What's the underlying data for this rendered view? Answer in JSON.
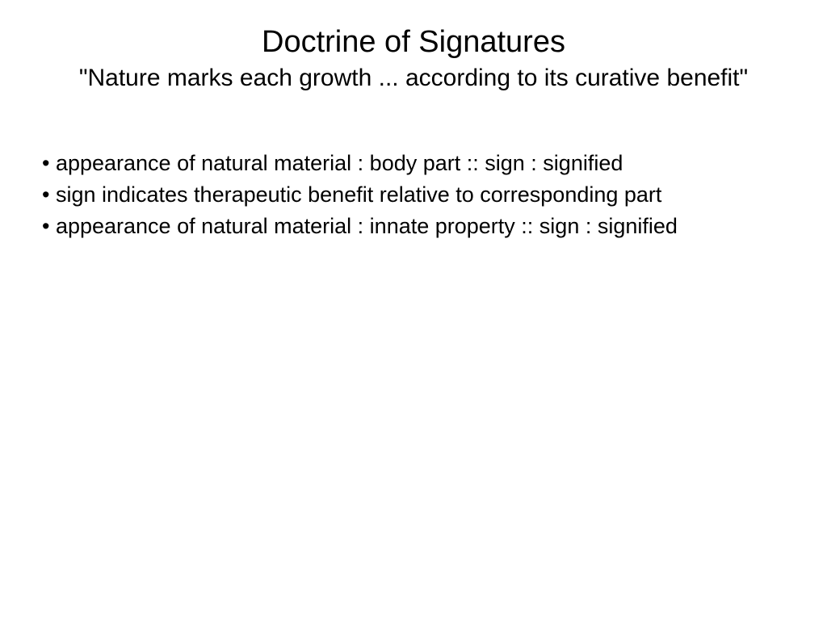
{
  "slide": {
    "title": "Doctrine of Signatures",
    "subtitle": "\"Nature marks each growth ... according to its curative benefit\"",
    "bullets": [
      "• appearance of natural material : body part :: sign : signified",
      "• sign indicates therapeutic benefit relative to corresponding part",
      "• appearance of natural material : innate property :: sign : signified"
    ]
  },
  "style": {
    "background_color": "#ffffff",
    "text_color": "#000000",
    "title_fontsize": 38,
    "subtitle_fontsize": 30,
    "body_fontsize": 27,
    "font_family": "Verdana"
  }
}
